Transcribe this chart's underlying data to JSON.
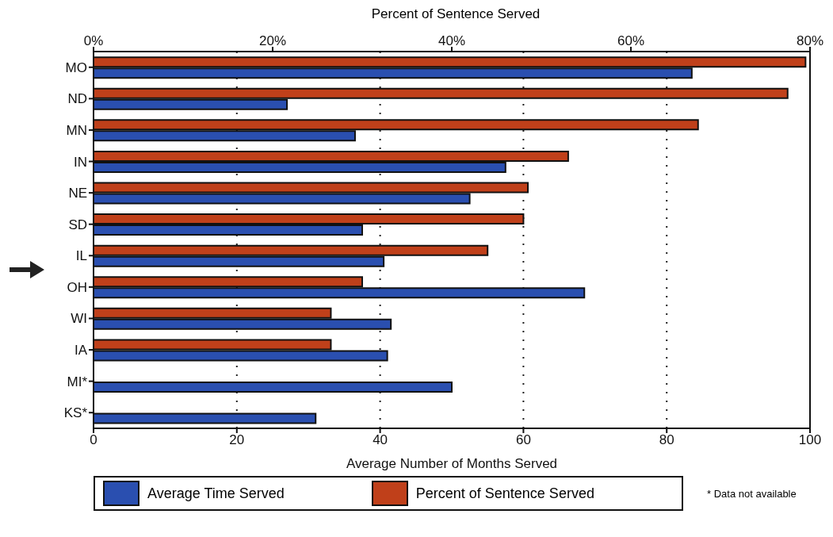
{
  "chart_data": {
    "type": "bar",
    "orientation": "horizontal",
    "categories": [
      "MO",
      "ND",
      "MN",
      "IN",
      "NE",
      "SD",
      "IL",
      "OH",
      "WI",
      "IA",
      "MI*",
      "KS*"
    ],
    "series": [
      {
        "name": "Percent of Sentence Served",
        "color": "#c0401a",
        "axis": "x2",
        "values": [
          79.5,
          77.5,
          67.5,
          53,
          48.5,
          48,
          44,
          30,
          26.5,
          26.5,
          null,
          null
        ]
      },
      {
        "name": "Average Time Served",
        "color": "#2a4fb0",
        "values": [
          83.5,
          27,
          36.5,
          57.5,
          52.5,
          37.5,
          40.5,
          68.5,
          41.5,
          41,
          50,
          31
        ]
      }
    ],
    "xlabel": "Average Number of Months Served",
    "xlim": [
      0,
      100
    ],
    "xticks": [
      0,
      20,
      40,
      60,
      80,
      100
    ],
    "x2label": "Percent of Sentence Served",
    "x2lim": [
      0,
      80
    ],
    "x2ticks": [
      {
        "value": 0,
        "label": "0%"
      },
      {
        "value": 20,
        "label": "20%"
      },
      {
        "value": 40,
        "label": "40%"
      },
      {
        "value": 60,
        "label": "60%"
      },
      {
        "value": 80,
        "label": "80%"
      }
    ],
    "grid": "x",
    "legend": "bottom",
    "annotations": [
      "* Data not available"
    ]
  }
}
